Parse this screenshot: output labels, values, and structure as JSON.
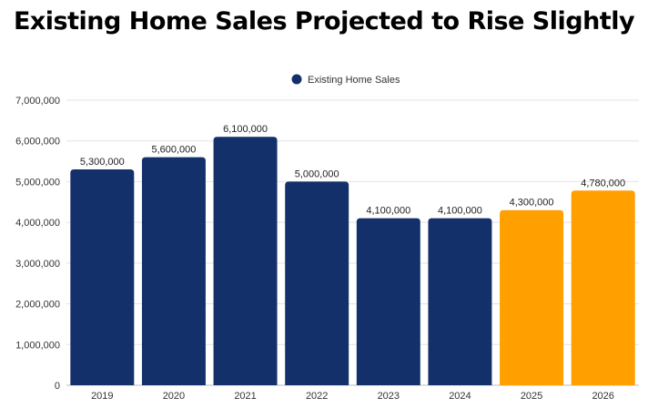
{
  "chart_data": {
    "type": "bar",
    "title": "Existing Home Sales Projected to Rise Slightly",
    "categories": [
      "2019",
      "2020",
      "2021",
      "2022",
      "2023",
      "2024",
      "2025",
      "2026"
    ],
    "series": [
      {
        "name": "Existing Home Sales",
        "values": [
          5300000,
          5600000,
          6100000,
          5000000,
          4100000,
          4100000,
          4300000,
          4780000
        ],
        "data_labels": [
          "5,300,000",
          "5,600,000",
          "6,100,000",
          "5,000,000",
          "4,100,000",
          "4,100,000",
          "4,300,000",
          "4,780,000"
        ],
        "bar_colors": [
          "#14306b",
          "#14306b",
          "#14306b",
          "#14306b",
          "#14306b",
          "#14306b",
          "#ff9f00",
          "#ff9f00"
        ]
      }
    ],
    "y_ticks": [
      0,
      1000000,
      2000000,
      3000000,
      4000000,
      5000000,
      6000000,
      7000000
    ],
    "y_tick_labels": [
      "0",
      "1,000,000",
      "2,000,000",
      "3,000,000",
      "4,000,000",
      "5,000,000",
      "6,000,000",
      "7,000,000"
    ],
    "ylim": [
      0,
      7000000
    ],
    "xlabel": "",
    "ylabel": "",
    "grid": true,
    "legend_position": "top-center",
    "legend_color": "#14306b"
  }
}
